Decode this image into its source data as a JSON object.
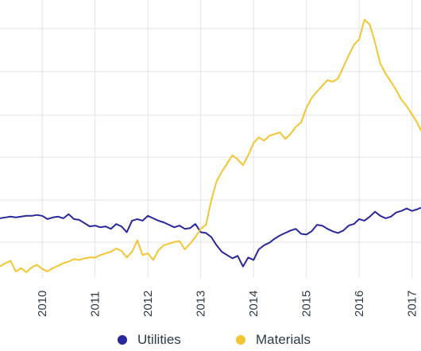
{
  "chart_data": {
    "type": "line",
    "x_tick_labels": [
      "2010",
      "2011",
      "2012",
      "2013",
      "2014",
      "2015",
      "2016",
      "2017"
    ],
    "xlim": [
      2009.2,
      2017.17
    ],
    "ylim": [
      0,
      340
    ],
    "grid": true,
    "legend_position": "bottom-center",
    "series": [
      {
        "name": "Utilities",
        "color": "#28289c",
        "points": [
          [
            2009.2,
            73
          ],
          [
            2009.3,
            74
          ],
          [
            2009.4,
            75
          ],
          [
            2009.5,
            74
          ],
          [
            2009.6,
            75
          ],
          [
            2009.7,
            76
          ],
          [
            2009.8,
            76
          ],
          [
            2009.9,
            77
          ],
          [
            2010.0,
            76
          ],
          [
            2010.1,
            72
          ],
          [
            2010.2,
            74
          ],
          [
            2010.3,
            75
          ],
          [
            2010.4,
            73
          ],
          [
            2010.5,
            78
          ],
          [
            2010.6,
            72
          ],
          [
            2010.7,
            71
          ],
          [
            2010.8,
            67
          ],
          [
            2010.9,
            63
          ],
          [
            2011.0,
            64
          ],
          [
            2011.1,
            62
          ],
          [
            2011.2,
            63
          ],
          [
            2011.3,
            60
          ],
          [
            2011.4,
            66
          ],
          [
            2011.5,
            63
          ],
          [
            2011.6,
            56
          ],
          [
            2011.7,
            70
          ],
          [
            2011.8,
            72
          ],
          [
            2011.9,
            70
          ],
          [
            2012.0,
            76
          ],
          [
            2012.1,
            73
          ],
          [
            2012.2,
            70
          ],
          [
            2012.3,
            68
          ],
          [
            2012.4,
            65
          ],
          [
            2012.5,
            62
          ],
          [
            2012.6,
            64
          ],
          [
            2012.7,
            60
          ],
          [
            2012.8,
            61
          ],
          [
            2012.9,
            66
          ],
          [
            2013.0,
            56
          ],
          [
            2013.1,
            55
          ],
          [
            2013.2,
            50
          ],
          [
            2013.3,
            40
          ],
          [
            2013.4,
            32
          ],
          [
            2013.5,
            28
          ],
          [
            2013.6,
            24
          ],
          [
            2013.7,
            27
          ],
          [
            2013.8,
            14
          ],
          [
            2013.9,
            25
          ],
          [
            2014.0,
            22
          ],
          [
            2014.1,
            35
          ],
          [
            2014.2,
            40
          ],
          [
            2014.3,
            43
          ],
          [
            2014.4,
            48
          ],
          [
            2014.5,
            52
          ],
          [
            2014.6,
            55
          ],
          [
            2014.7,
            58
          ],
          [
            2014.8,
            60
          ],
          [
            2014.9,
            54
          ],
          [
            2015.0,
            53
          ],
          [
            2015.1,
            57
          ],
          [
            2015.2,
            65
          ],
          [
            2015.3,
            64
          ],
          [
            2015.4,
            60
          ],
          [
            2015.5,
            57
          ],
          [
            2015.6,
            55
          ],
          [
            2015.7,
            58
          ],
          [
            2015.8,
            64
          ],
          [
            2015.9,
            66
          ],
          [
            2016.0,
            72
          ],
          [
            2016.1,
            70
          ],
          [
            2016.2,
            75
          ],
          [
            2016.3,
            81
          ],
          [
            2016.4,
            76
          ],
          [
            2016.5,
            73
          ],
          [
            2016.6,
            75
          ],
          [
            2016.7,
            80
          ],
          [
            2016.8,
            82
          ],
          [
            2016.9,
            85
          ],
          [
            2017.0,
            82
          ],
          [
            2017.1,
            84
          ],
          [
            2017.17,
            86
          ]
        ]
      },
      {
        "name": "Materials",
        "color": "#f5c431",
        "points": [
          [
            2009.2,
            14
          ],
          [
            2009.3,
            18
          ],
          [
            2009.4,
            21
          ],
          [
            2009.5,
            8
          ],
          [
            2009.6,
            12
          ],
          [
            2009.7,
            7
          ],
          [
            2009.8,
            13
          ],
          [
            2009.9,
            16
          ],
          [
            2010.0,
            11
          ],
          [
            2010.1,
            8
          ],
          [
            2010.2,
            12
          ],
          [
            2010.3,
            15
          ],
          [
            2010.4,
            18
          ],
          [
            2010.5,
            20
          ],
          [
            2010.6,
            23
          ],
          [
            2010.7,
            22
          ],
          [
            2010.8,
            24
          ],
          [
            2010.9,
            25
          ],
          [
            2011.0,
            25
          ],
          [
            2011.1,
            28
          ],
          [
            2011.2,
            30
          ],
          [
            2011.3,
            32
          ],
          [
            2011.4,
            36
          ],
          [
            2011.5,
            33
          ],
          [
            2011.6,
            25
          ],
          [
            2011.7,
            32
          ],
          [
            2011.8,
            46
          ],
          [
            2011.9,
            28
          ],
          [
            2012.0,
            30
          ],
          [
            2012.1,
            22
          ],
          [
            2012.2,
            34
          ],
          [
            2012.3,
            40
          ],
          [
            2012.4,
            42
          ],
          [
            2012.5,
            44
          ],
          [
            2012.6,
            45
          ],
          [
            2012.7,
            35
          ],
          [
            2012.8,
            42
          ],
          [
            2012.9,
            50
          ],
          [
            2013.0,
            60
          ],
          [
            2013.1,
            65
          ],
          [
            2013.2,
            95
          ],
          [
            2013.3,
            118
          ],
          [
            2013.4,
            130
          ],
          [
            2013.5,
            140
          ],
          [
            2013.6,
            150
          ],
          [
            2013.7,
            145
          ],
          [
            2013.8,
            138
          ],
          [
            2013.9,
            150
          ],
          [
            2014.0,
            165
          ],
          [
            2014.1,
            172
          ],
          [
            2014.2,
            168
          ],
          [
            2014.3,
            174
          ],
          [
            2014.4,
            176
          ],
          [
            2014.5,
            178
          ],
          [
            2014.6,
            170
          ],
          [
            2014.7,
            176
          ],
          [
            2014.8,
            185
          ],
          [
            2014.9,
            190
          ],
          [
            2015.0,
            208
          ],
          [
            2015.1,
            220
          ],
          [
            2015.2,
            228
          ],
          [
            2015.3,
            235
          ],
          [
            2015.4,
            242
          ],
          [
            2015.5,
            240
          ],
          [
            2015.6,
            244
          ],
          [
            2015.7,
            258
          ],
          [
            2015.8,
            272
          ],
          [
            2015.9,
            285
          ],
          [
            2016.0,
            292
          ],
          [
            2016.1,
            316
          ],
          [
            2016.2,
            310
          ],
          [
            2016.3,
            288
          ],
          [
            2016.4,
            262
          ],
          [
            2016.5,
            250
          ],
          [
            2016.6,
            240
          ],
          [
            2016.7,
            230
          ],
          [
            2016.8,
            218
          ],
          [
            2016.9,
            210
          ],
          [
            2017.0,
            200
          ],
          [
            2017.1,
            190
          ],
          [
            2017.17,
            180
          ]
        ]
      }
    ]
  }
}
